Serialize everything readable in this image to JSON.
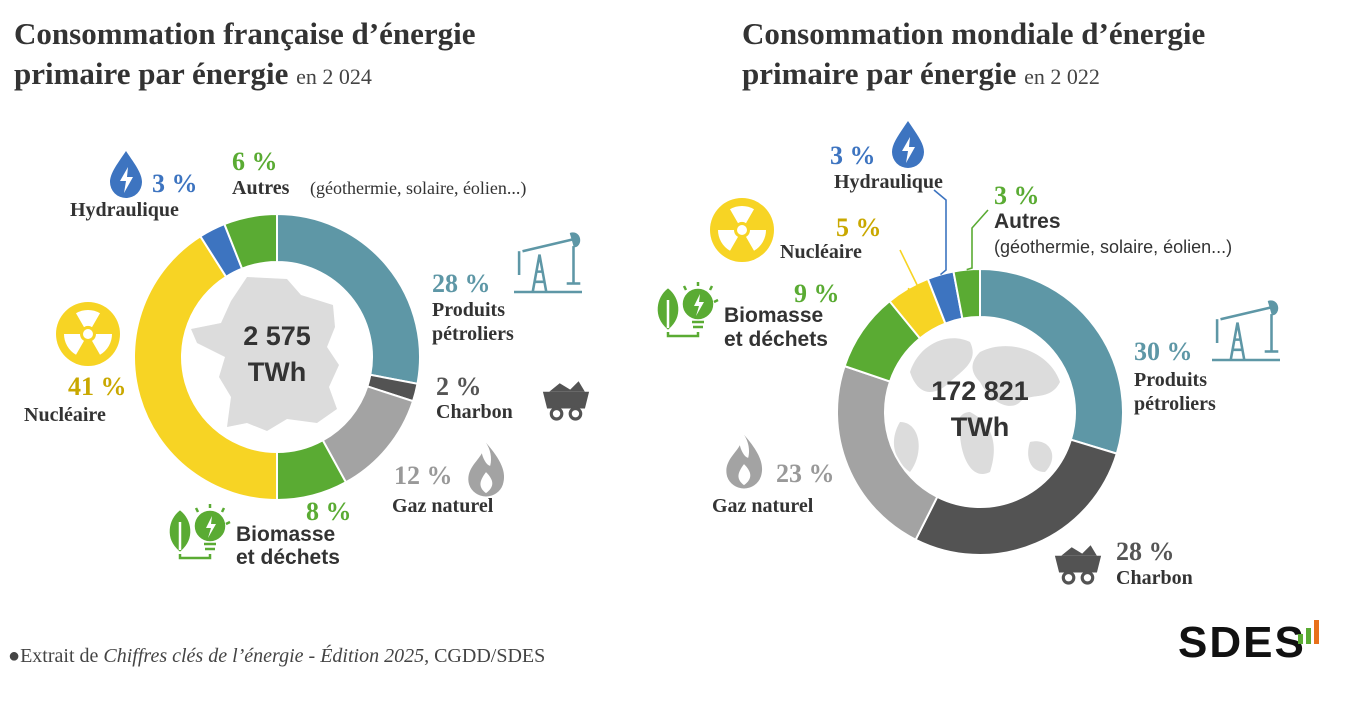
{
  "colors": {
    "petrole": "#5e97a6",
    "charbon": "#535353",
    "gaz": "#a3a3a3",
    "biomasse": "#5aab33",
    "nucleaire": "#f7d424",
    "hydraulique": "#3d74c0",
    "autres": "#5aab33",
    "map": "#dcdcdc"
  },
  "chart_data": [
    {
      "type": "pie",
      "title_line1": "Consommation française d’énergie",
      "title_line2": "primaire par énergie",
      "title_year": "en 2 024",
      "center_value": "2 575",
      "center_unit": "TWh",
      "series": [
        {
          "name": "Produits pétroliers",
          "name_line1": "Produits",
          "name_line2": "pétroliers",
          "pct_label": "28 %",
          "value": 28
        },
        {
          "name": "Charbon",
          "name_line1": "Charbon",
          "pct_label": "2 %",
          "value": 2
        },
        {
          "name": "Gaz naturel",
          "name_line1": "Gaz naturel",
          "pct_label": "12 %",
          "value": 12
        },
        {
          "name": "Biomasse et déchets",
          "name_line1": "Biomasse",
          "name_line2": "et déchets",
          "pct_label": "8 %",
          "value": 8
        },
        {
          "name": "Nucléaire",
          "name_line1": "Nucléaire",
          "pct_label": "41 %",
          "value": 41
        },
        {
          "name": "Hydraulique",
          "name_line1": "Hydraulique",
          "pct_label": "3 %",
          "value": 3
        },
        {
          "name": "Autres",
          "name_line1": "Autres",
          "name_note": "(géothermie, solaire, éolien...)",
          "pct_label": "6 %",
          "value": 6
        }
      ]
    },
    {
      "type": "pie",
      "title_line1": "Consommation mondiale d’énergie",
      "title_line2": "primaire par énergie",
      "title_year": "en 2 022",
      "center_value": "172 821",
      "center_unit": "TWh",
      "series": [
        {
          "name": "Produits pétroliers",
          "name_line1": "Produits",
          "name_line2": "pétroliers",
          "pct_label": "30 %",
          "value": 30
        },
        {
          "name": "Charbon",
          "name_line1": "Charbon",
          "pct_label": "28 %",
          "value": 28
        },
        {
          "name": "Gaz naturel",
          "name_line1": "Gaz naturel",
          "pct_label": "23 %",
          "value": 23
        },
        {
          "name": "Biomasse et déchets",
          "name_line1": "Biomasse",
          "name_line2": "et déchets",
          "pct_label": "9 %",
          "value": 9
        },
        {
          "name": "Nucléaire",
          "name_line1": "Nucléaire",
          "pct_label": "5 %",
          "value": 5
        },
        {
          "name": "Hydraulique",
          "name_line1": "Hydraulique",
          "pct_label": "3 %",
          "value": 3
        },
        {
          "name": "Autres",
          "name_line1": "Autres",
          "name_note": "(géothermie, solaire, éolien...)",
          "pct_label": "3 %",
          "value": 3
        }
      ]
    }
  ],
  "footer": {
    "prefix": "Extrait de",
    "source_title": "Chiffres clés de l’énergie - Édition 2025",
    "suffix": ", CGDD/SDES"
  },
  "logo": {
    "text": "SDES"
  }
}
